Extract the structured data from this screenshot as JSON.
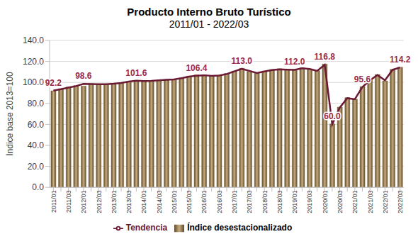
{
  "chart_data": {
    "type": "bar",
    "title": "Producto Interno Bruto Turístico",
    "subtitle": "2011/01 - 2022/03",
    "y_label": "Índice base 2013=100",
    "categories": [
      "2011/01",
      null,
      "2011/03",
      null,
      "2012/01",
      null,
      "2012/03",
      null,
      "2013/01",
      null,
      "2013/03",
      null,
      "2014/01",
      null,
      "2014/03",
      null,
      "2015/01",
      null,
      "2015/03",
      null,
      "2016/01",
      null,
      "2016/03",
      null,
      "2017/01",
      null,
      "2017/03",
      null,
      "2018/01",
      null,
      "2018/03",
      null,
      "2019/01",
      null,
      "2019/03",
      null,
      "2020/01",
      null,
      "2020/03",
      null,
      "2021/01",
      null,
      "2021/03",
      null,
      "2022/01",
      null,
      "2022/03"
    ],
    "series": [
      {
        "name": "Índice desestacionalizado",
        "type": "bar",
        "color": "#8c7248",
        "values": [
          92.0,
          94.0,
          95.5,
          97.0,
          96.5,
          98.8,
          98.5,
          98.0,
          98.5,
          99.2,
          100.5,
          101.2,
          101.0,
          101.6,
          102.2,
          102.8,
          102.5,
          104.2,
          106.0,
          107.2,
          107.0,
          106.0,
          106.8,
          108.5,
          110.8,
          113.5,
          110.5,
          108.8,
          110.8,
          112.2,
          113.0,
          112.0,
          112.4,
          114.0,
          112.6,
          111.2,
          117.5,
          60.5,
          76.5,
          85.5,
          84.0,
          96.0,
          102.5,
          107.5,
          101.5,
          112.5,
          114.5
        ]
      },
      {
        "name": "Tendencia",
        "type": "line",
        "color": "#6b1a33",
        "values": [
          92.2,
          93.5,
          95.0,
          96.5,
          98.6,
          98.4,
          98.2,
          98.3,
          98.8,
          99.5,
          100.8,
          101.6,
          101.3,
          101.5,
          102.0,
          102.5,
          102.8,
          104.0,
          105.5,
          106.4,
          106.8,
          106.2,
          106.5,
          108.0,
          110.5,
          113.0,
          111.0,
          109.0,
          110.5,
          111.8,
          112.5,
          112.2,
          112.0,
          113.5,
          112.8,
          111.0,
          116.8,
          60.0,
          76.0,
          85.0,
          84.0,
          95.6,
          102.0,
          107.0,
          102.0,
          112.0,
          114.2
        ],
        "value_labels": [
          "92.2",
          null,
          null,
          null,
          "98.6",
          null,
          null,
          null,
          null,
          null,
          null,
          "101.6",
          null,
          null,
          null,
          null,
          null,
          null,
          null,
          "106.4",
          null,
          null,
          null,
          null,
          null,
          "113.0",
          null,
          null,
          null,
          null,
          null,
          null,
          "112.0",
          null,
          null,
          null,
          "116.8",
          "60.0",
          null,
          null,
          null,
          "95.6",
          null,
          null,
          null,
          null,
          "114.2"
        ]
      }
    ],
    "ylim": [
      0,
      140
    ],
    "yticks": [
      {
        "value": 0,
        "label": "0.0"
      },
      {
        "value": 20,
        "label": "20.0"
      },
      {
        "value": 40,
        "label": "40.0"
      },
      {
        "value": 60,
        "label": "60.0"
      },
      {
        "value": 80,
        "label": "80.0"
      },
      {
        "value": 100,
        "label": "100.0"
      },
      {
        "value": 120,
        "label": "120.0"
      },
      {
        "value": 140,
        "label": "140.0"
      }
    ],
    "grid": true,
    "legend": "bottom"
  }
}
